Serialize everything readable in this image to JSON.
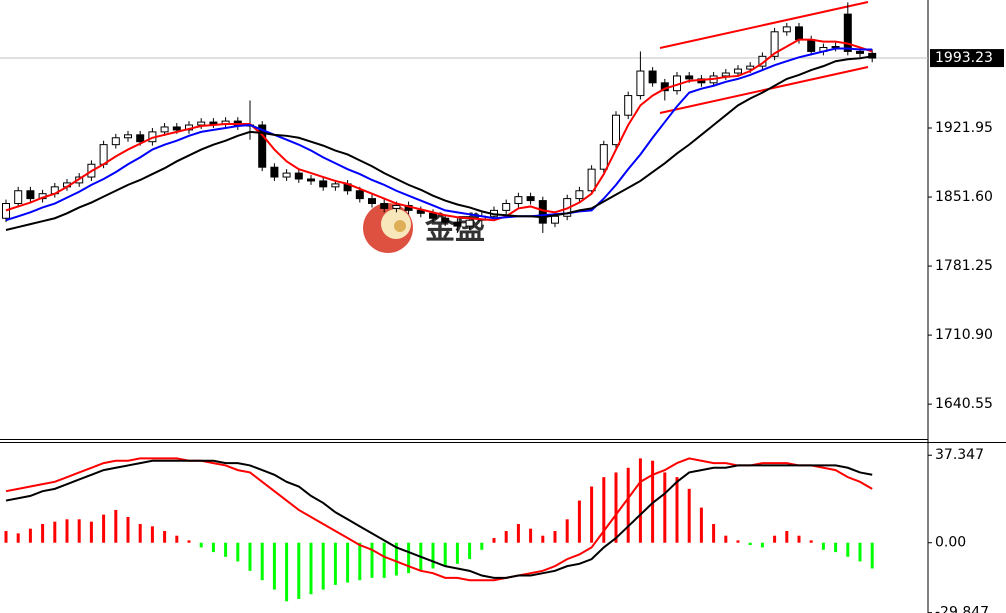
{
  "chart_data": [
    {
      "type": "candlestick",
      "watermark": "金盛",
      "last": 1993.23,
      "up_color": "#ffffff",
      "down_color": "#000000",
      "open": [
        1830,
        1845,
        1858,
        1850,
        1855,
        1862,
        1866,
        1872,
        1885,
        1905,
        1912,
        1915,
        1908,
        1918,
        1923,
        1920,
        1925,
        1928,
        1926,
        1929,
        1924,
        1925,
        1882,
        1872,
        1876,
        1870,
        1868,
        1862,
        1865,
        1858,
        1850,
        1845,
        1840,
        1843,
        1838,
        1835,
        1830,
        1826,
        1822,
        1828,
        1832,
        1838,
        1845,
        1852,
        1848,
        1825,
        1832,
        1850,
        1858,
        1880,
        1905,
        1935,
        1955,
        1980,
        1968,
        1960,
        1975,
        1972,
        1968,
        1975,
        1978,
        1982,
        1985,
        1995,
        2020,
        2025,
        2012,
        2000,
        2004,
        2038,
        2000,
        1998
      ],
      "high": [
        1849,
        1862,
        1862,
        1859,
        1866,
        1870,
        1876,
        1889,
        1909,
        1916,
        1919,
        1919,
        1922,
        1927,
        1927,
        1929,
        1932,
        1932,
        1933,
        1933,
        1950,
        1929,
        1886,
        1880,
        1880,
        1874,
        1872,
        1869,
        1869,
        1862,
        1854,
        1849,
        1847,
        1847,
        1842,
        1839,
        1834,
        1830,
        1832,
        1836,
        1842,
        1849,
        1856,
        1856,
        1852,
        1836,
        1854,
        1862,
        1884,
        1909,
        1939,
        1959,
        2000,
        1984,
        1972,
        1979,
        1979,
        1976,
        1979,
        1982,
        1986,
        1989,
        1999,
        2024,
        2029,
        2029,
        2016,
        2008,
        2009,
        2050,
        2004,
        2002
      ],
      "low": [
        1826,
        1841,
        1846,
        1846,
        1851,
        1858,
        1862,
        1868,
        1881,
        1901,
        1908,
        1904,
        1904,
        1914,
        1916,
        1916,
        1921,
        1922,
        1922,
        1920,
        1910,
        1878,
        1868,
        1868,
        1866,
        1864,
        1858,
        1858,
        1854,
        1846,
        1841,
        1836,
        1836,
        1834,
        1831,
        1826,
        1822,
        1815,
        1818,
        1824,
        1828,
        1834,
        1841,
        1844,
        1815,
        1821,
        1828,
        1846,
        1854,
        1876,
        1901,
        1931,
        1951,
        1964,
        1950,
        1956,
        1968,
        1964,
        1964,
        1971,
        1974,
        1978,
        1981,
        1991,
        2016,
        2008,
        1996,
        1996,
        2000,
        1996,
        1994,
        1989
      ],
      "close": [
        1845,
        1858,
        1850,
        1855,
        1862,
        1866,
        1872,
        1885,
        1905,
        1912,
        1915,
        1908,
        1918,
        1923,
        1920,
        1925,
        1928,
        1926,
        1929,
        1924,
        1925,
        1882,
        1872,
        1876,
        1870,
        1868,
        1862,
        1865,
        1858,
        1850,
        1845,
        1840,
        1843,
        1838,
        1835,
        1830,
        1826,
        1822,
        1828,
        1832,
        1838,
        1845,
        1852,
        1848,
        1825,
        1832,
        1850,
        1858,
        1880,
        1905,
        1935,
        1955,
        1980,
        1968,
        1960,
        1975,
        1972,
        1968,
        1975,
        1978,
        1982,
        1985,
        1995,
        2020,
        2025,
        2012,
        2000,
        2004,
        2005,
        2000,
        1998,
        1993.23
      ],
      "lines": [
        {
          "color": "#ff0000",
          "values": [
            1838,
            1842,
            1846,
            1851,
            1855,
            1862,
            1870,
            1878,
            1885,
            1893,
            1900,
            1906,
            1912,
            1915,
            1918,
            1921,
            1924,
            1925,
            1926,
            1926,
            1926,
            1915,
            1900,
            1888,
            1880,
            1876,
            1872,
            1868,
            1865,
            1860,
            1855,
            1850,
            1845,
            1842,
            1839,
            1836,
            1833,
            1831,
            1830,
            1829,
            1828,
            1832,
            1840,
            1842,
            1838,
            1836,
            1840,
            1846,
            1855,
            1875,
            1900,
            1925,
            1945,
            1955,
            1962,
            1966,
            1970,
            1971,
            1972,
            1974,
            1975,
            1980,
            1988,
            1998,
            2005,
            2012,
            2012,
            2010,
            2010,
            2008,
            2004,
            2000
          ]
        },
        {
          "color": "#0000ff",
          "values": [
            1828,
            1832,
            1836,
            1841,
            1845,
            1851,
            1857,
            1864,
            1870,
            1877,
            1885,
            1892,
            1900,
            1905,
            1909,
            1914,
            1918,
            1920,
            1922,
            1924,
            1925,
            1920,
            1915,
            1910,
            1905,
            1899,
            1892,
            1886,
            1880,
            1875,
            1869,
            1864,
            1858,
            1853,
            1848,
            1843,
            1838,
            1836,
            1834,
            1832,
            1830,
            1831,
            1832,
            1832,
            1833,
            1834,
            1835,
            1837,
            1838,
            1850,
            1864,
            1880,
            1895,
            1912,
            1928,
            1944,
            1958,
            1962,
            1965,
            1969,
            1972,
            1976,
            1981,
            1986,
            1990,
            1994,
            1997,
            2000,
            2003,
            2003,
            2002,
            2002
          ]
        },
        {
          "color": "#000000",
          "values": [
            1818,
            1821,
            1824,
            1827,
            1830,
            1835,
            1841,
            1846,
            1852,
            1858,
            1864,
            1869,
            1875,
            1881,
            1888,
            1894,
            1900,
            1905,
            1909,
            1914,
            1918,
            1917,
            1915,
            1914,
            1912,
            1908,
            1904,
            1899,
            1895,
            1889,
            1883,
            1876,
            1870,
            1864,
            1859,
            1853,
            1848,
            1844,
            1841,
            1837,
            1834,
            1833,
            1832,
            1832,
            1831,
            1833,
            1835,
            1838,
            1840,
            1847,
            1854,
            1861,
            1868,
            1877,
            1886,
            1896,
            1905,
            1915,
            1925,
            1935,
            1945,
            1952,
            1958,
            1965,
            1972,
            1976,
            1981,
            1985,
            1990,
            1992,
            1993,
            1995
          ]
        }
      ],
      "ylim": [
        1604,
        2052.4
      ],
      "yticks": [
        1921.95,
        {
          "value": 1851.6,
          "label": "1851.60"
        },
        1781.25,
        {
          "value": 1710.9,
          "label": "1710.90"
        },
        1640.55
      ]
    },
    {
      "type": "macd",
      "positive_color": "#ff0000",
      "negative_color": "#00ff00",
      "histogram": [
        5,
        4,
        6,
        8,
        9,
        10,
        10,
        9,
        12,
        14,
        11,
        8,
        7,
        5,
        3,
        1,
        -2,
        -4,
        -6,
        -8,
        -12,
        -16,
        -20,
        -25,
        -24,
        -22,
        -20,
        -18,
        -17,
        -16,
        -15,
        -15,
        -14,
        -13,
        -12,
        -11,
        -10,
        -9,
        -7,
        -3,
        2,
        5,
        8,
        6,
        3,
        5,
        10,
        18,
        24,
        28,
        30,
        32,
        36,
        35,
        30,
        28,
        23,
        15,
        8,
        3,
        1,
        -1,
        -2,
        3,
        5,
        3,
        1,
        -3,
        -4,
        -6,
        -8,
        -11
      ],
      "lines": [
        {
          "color": "#ff0000",
          "values": [
            22,
            23,
            24,
            25,
            26,
            28,
            30,
            32,
            34,
            35,
            35,
            36,
            36,
            36,
            36,
            35,
            35,
            34,
            33,
            31,
            30,
            26,
            22,
            18,
            14,
            11,
            8,
            5,
            2,
            -1,
            -3,
            -6,
            -8,
            -10,
            -12,
            -13,
            -15,
            -15,
            -16,
            -16,
            -16,
            -15,
            -14,
            -13,
            -12,
            -10,
            -7,
            -5,
            -2,
            5,
            12,
            19,
            26,
            29,
            31,
            34,
            36,
            35,
            34,
            34,
            33,
            33,
            34,
            34,
            34,
            33,
            33,
            32,
            31,
            28,
            26,
            23
          ]
        },
        {
          "color": "#000000",
          "values": [
            18,
            19,
            20,
            22,
            23,
            25,
            27,
            29,
            31,
            32,
            33,
            34,
            35,
            35,
            35,
            35,
            35,
            35,
            34,
            34,
            33,
            31,
            29,
            26,
            24,
            20,
            17,
            13,
            10,
            7,
            4,
            1,
            -2,
            -4,
            -6,
            -8,
            -10,
            -11,
            -12,
            -14,
            -15,
            -15,
            -14,
            -14,
            -13,
            -12,
            -10,
            -9,
            -7,
            -2,
            2,
            7,
            12,
            17,
            21,
            26,
            30,
            31,
            32,
            32,
            33,
            33,
            33,
            33,
            33,
            33,
            33,
            33,
            33,
            32,
            30,
            29
          ]
        }
      ],
      "ylim": [
        -30,
        43
      ],
      "yticks": [
        37.347,
        {
          "value": 0,
          "label": "0.00"
        },
        -29.847
      ]
    }
  ]
}
